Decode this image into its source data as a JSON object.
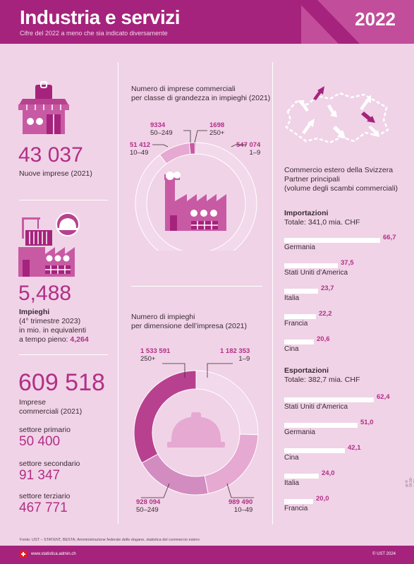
{
  "header": {
    "title": "Industria e servizi",
    "subtitle": "Cifre del 2022 a meno che sia indicato diversamente",
    "year": "2022"
  },
  "left": {
    "new_companies_value": "43 037",
    "new_companies_label": "Nuove imprese (2021)",
    "jobs_value": "5,488",
    "jobs_label": "Impieghi",
    "jobs_note1": "(4° trimestre 2023)",
    "jobs_note2": "in mio. in equivalenti",
    "jobs_note3_prefix": "a tempo pieno: ",
    "jobs_note3_value": "4,264",
    "companies_value": "609 518",
    "companies_label1": "Imprese",
    "companies_label2": "commerciali (2021)",
    "primary_label": "settore primario",
    "primary_value": "50 400",
    "secondary_label": "settore secondario",
    "secondary_value": "91 347",
    "tertiary_label": "settore terziario",
    "tertiary_value": "467 771"
  },
  "middle": {
    "chart1_title1": "Numero di imprese commerciali",
    "chart1_title2": "per classe di grandezza in impieghi (2021)",
    "chart2_title1": "Numero di impieghi",
    "chart2_title2": "per dimensione dell’impresa (2021)"
  },
  "right": {
    "title1": "Commercio estero della Svizzera",
    "title2": "Partner principali",
    "title3": "(volume degli scambi commerciali)",
    "imports_title": "Importazioni",
    "imports_total": "Totale: 341,0 mia. CHF",
    "exports_title": "Esportazioni",
    "exports_total": "Totale: 382,7 mia. CHF"
  },
  "chart_data": [
    {
      "type": "pie",
      "categories": [
        "1–9",
        "10–49",
        "50–249",
        "250+"
      ],
      "values": [
        547074,
        51412,
        9334,
        1698
      ],
      "value_labels": [
        "547 074",
        "51 412",
        "9334",
        "1698"
      ],
      "colors": [
        "#f3d9ec",
        "#e6a9d2",
        "#c85aa4",
        "#a5237c"
      ]
    },
    {
      "type": "pie",
      "categories": [
        "1–9",
        "10–49",
        "50–249",
        "250+"
      ],
      "values": [
        1182353,
        989490,
        928094,
        1533591
      ],
      "value_labels": [
        "1 182 353",
        "989 490",
        "928 094",
        "1 533 591"
      ],
      "colors": [
        "#f3d9ec",
        "#e6a9d2",
        "#d38cc0",
        "#b8418f"
      ]
    },
    {
      "type": "bar",
      "categories": [
        "Germania",
        "Stati Uniti d’America",
        "Italia",
        "Francia",
        "Cina"
      ],
      "values": [
        66.7,
        37.5,
        23.7,
        22.2,
        20.6
      ],
      "value_labels": [
        "66,7",
        "37,5",
        "23,7",
        "22,2",
        "20,6"
      ]
    },
    {
      "type": "bar",
      "categories": [
        "Stati Uniti d’America",
        "Germania",
        "Cina",
        "Italia",
        "Francia"
      ],
      "values": [
        62.4,
        51.0,
        42.1,
        24.0,
        20.0
      ],
      "value_labels": [
        "62,4",
        "51,0",
        "42,1",
        "24,0",
        "20,0"
      ]
    }
  ],
  "footer": {
    "source": "Fonte: UST – STATENT, BESTA; Amministrazione federale delle dogane, statistica del commercio estero",
    "url": "www.statistica.admin.ch",
    "copyright": "© UST 2024",
    "side_note": "gr-d-00.00-jb-22"
  },
  "colors": {
    "brand": "#a5237c",
    "accent": "#b22f86",
    "background": "#f0d3e7"
  }
}
